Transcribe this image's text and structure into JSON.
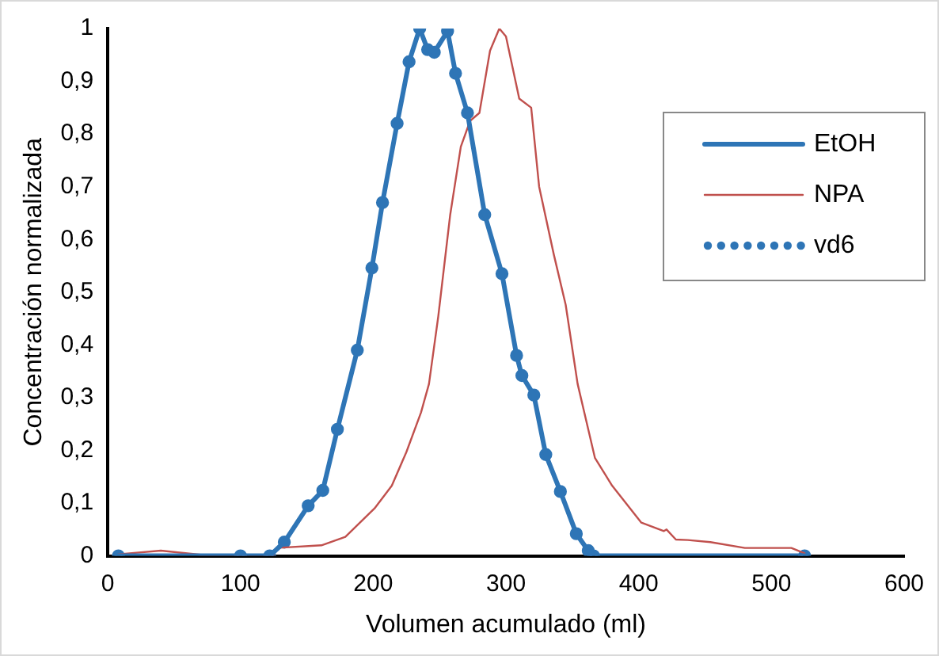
{
  "chart_data": {
    "type": "line",
    "xlabel": "Volumen acumulado (ml)",
    "ylabel": "Concentración normalizada",
    "xlim": [
      0,
      600
    ],
    "xticks": [
      0,
      100,
      200,
      300,
      400,
      500,
      600
    ],
    "ylim": [
      0,
      1
    ],
    "yticks": [
      0,
      {
        "value": 0.1,
        "label": "0,1"
      },
      {
        "value": 0.2,
        "label": "0,2"
      },
      {
        "value": 0.3,
        "label": "0,3"
      },
      {
        "value": 0.4,
        "label": "0,4"
      },
      {
        "value": 0.5,
        "label": "0,5"
      },
      {
        "value": 0.6,
        "label": "0,6"
      },
      {
        "value": 0.7,
        "label": "0,7"
      },
      {
        "value": 0.8,
        "label": "0,8"
      },
      {
        "value": 0.9,
        "label": "0,9"
      },
      1
    ],
    "grid": false,
    "legend": "top right",
    "series": [
      {
        "name": "EtOH",
        "color": "#2e75b6",
        "line_style": "solid",
        "x": [
          8,
          100,
          122,
          133,
          151,
          162,
          173,
          188,
          199,
          207,
          218,
          227,
          235,
          241,
          246,
          256,
          262,
          271,
          284,
          297,
          308,
          312,
          321,
          330,
          341,
          353,
          362,
          366,
          525
        ],
        "values": [
          0,
          0,
          0,
          0.026,
          0.095,
          0.124,
          0.24,
          0.39,
          0.546,
          0.67,
          0.82,
          0.937,
          1,
          0.96,
          0.955,
          0.995,
          0.915,
          0.84,
          0.647,
          0.535,
          0.38,
          0.342,
          0.305,
          0.192,
          0.122,
          0.042,
          0.01,
          0,
          0
        ]
      },
      {
        "name": "NPA",
        "color": "#c0504d",
        "line_style": "solid",
        "x": [
          8,
          40,
          70,
          100,
          125,
          127,
          161,
          179,
          201,
          214,
          225,
          236,
          242,
          249,
          258,
          266,
          273,
          280,
          288,
          295,
          300,
          310,
          319,
          325,
          336,
          345,
          354,
          367,
          380,
          402,
          419,
          421,
          428,
          437,
          454,
          480,
          515,
          525
        ],
        "values": [
          0.003,
          0.01,
          0.002,
          0.002,
          0.002,
          0.015,
          0.02,
          0.036,
          0.09,
          0.133,
          0.197,
          0.272,
          0.326,
          0.454,
          0.647,
          0.776,
          0.825,
          0.84,
          0.958,
          1,
          0.985,
          0.867,
          0.85,
          0.7,
          0.572,
          0.476,
          0.326,
          0.186,
          0.133,
          0.063,
          0.047,
          0.05,
          0.031,
          0.03,
          0.026,
          0.015,
          0.015,
          0.005
        ]
      },
      {
        "name": "vd6",
        "type": "scatter",
        "marker": "circle",
        "color": "#2e75b6",
        "x": [
          8,
          100,
          122,
          133,
          151,
          162,
          173,
          188,
          199,
          207,
          218,
          227,
          235,
          241,
          246,
          256,
          262,
          271,
          284,
          297,
          308,
          312,
          321,
          330,
          341,
          353,
          362,
          366,
          525
        ],
        "values": [
          0,
          0,
          0,
          0.026,
          0.095,
          0.124,
          0.24,
          0.39,
          0.546,
          0.67,
          0.82,
          0.937,
          1,
          0.96,
          0.955,
          0.995,
          0.915,
          0.84,
          0.647,
          0.535,
          0.38,
          0.342,
          0.305,
          0.192,
          0.122,
          0.042,
          0.01,
          0,
          0
        ]
      }
    ]
  }
}
